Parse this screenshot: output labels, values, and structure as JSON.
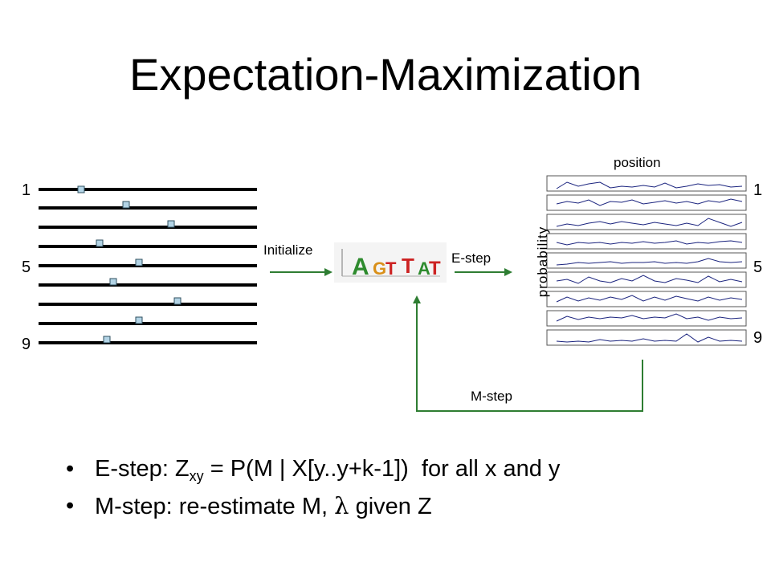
{
  "title": "Expectation-Maximization",
  "sequence_labels": {
    "top": "1",
    "middle": "5",
    "bottom": "9"
  },
  "profile_labels": {
    "top": "1",
    "middle": "5",
    "bottom": "9"
  },
  "steps": {
    "initialize": "Initialize",
    "e_step": "E-step",
    "m_step": "M-step"
  },
  "axes": {
    "position": "position",
    "probability": "probability"
  },
  "motif_logo_letters": [
    "A",
    "G",
    "T",
    "T",
    "A",
    "T"
  ],
  "colors": {
    "arrow": "#2e7d32",
    "profile_line": "#1a237e",
    "marker_fill": "#b3d4e6",
    "sequence_line": "#000000"
  },
  "bullets": {
    "e_step_prefix": "E-step: Z",
    "e_step_sub": "xy",
    "e_step_rest": " = P(M | X[y..y+k-1])  for all x and y",
    "m_step_prefix": "M-step: re-estimate M, ",
    "m_step_symbol": "λ",
    "m_step_rest": " given Z",
    "marker": "•"
  }
}
